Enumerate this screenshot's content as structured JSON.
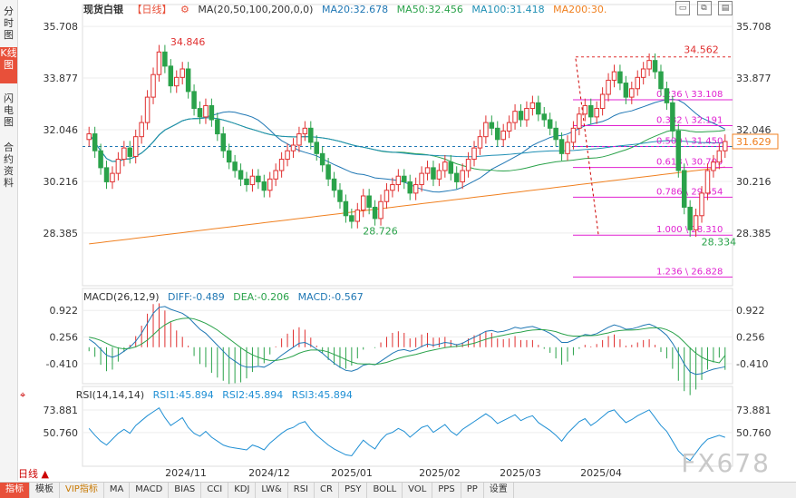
{
  "sidebar": {
    "tabs": [
      {
        "label": "分时图",
        "active": false
      },
      {
        "label": "K线图",
        "active": true
      },
      {
        "label": "闪电图",
        "active": false
      },
      {
        "label": "合约资料",
        "active": false
      }
    ]
  },
  "header": {
    "instrument": "现货白银",
    "period": "【日线】",
    "ma_params": "MA(20,50,100,200,0,0)",
    "ma20": "MA20:32.678",
    "ma50": "MA50:32.456",
    "ma100": "MA100:31.418",
    "ma200": "MA200:30."
  },
  "macd_header": {
    "params": "MACD(26,12,9)",
    "diff": "DIFF:-0.489",
    "dea": "DEA:-0.206",
    "macd": "MACD:-0.567"
  },
  "rsi_header": {
    "params": "RSI(14,14,14)",
    "rsi1": "RSI1:45.894",
    "rsi2": "RSI2:45.894",
    "rsi3": "RSI3:45.894"
  },
  "colors": {
    "up": "#e03030",
    "down": "#2aa24a",
    "ma20": "#1f77b4",
    "ma50": "#2aa24a",
    "ma100": "#1f8fb4",
    "ma200": "#f08020",
    "fib": "#e020d0",
    "macd_diff": "#1f77b4",
    "macd_dea": "#2aa24a",
    "rsi": "#1f8fd4"
  },
  "current_price": "31.629",
  "chart_data": {
    "type": "candlestick",
    "price_axis_ticks": [
      "35.708",
      "33.877",
      "32.046",
      "30.216",
      "28.385"
    ],
    "ylim": [
      27.0,
      36.0
    ],
    "x_labels": [
      "2024/11",
      "2024/12",
      "2025/01",
      "2025/02",
      "2025/03",
      "2025/04"
    ],
    "annotations": [
      {
        "label": "34.846",
        "value": 34.846
      },
      {
        "label": "28.726",
        "value": 28.726
      },
      {
        "label": "34.562",
        "value": 34.562
      },
      {
        "label": "28.334",
        "value": 28.334
      }
    ],
    "fibonacci": [
      {
        "label": "0.236 \\ 33.108",
        "value": 33.108
      },
      {
        "label": "0.382 \\ 32.191",
        "value": 32.191
      },
      {
        "label": "0.500 \\ 31.450",
        "value": 31.45
      },
      {
        "label": "0.618 \\ 30.709",
        "value": 30.709
      },
      {
        "label": "0.786 \\ 29.654",
        "value": 29.654
      },
      {
        "label": "1.000 \\ 28.310",
        "value": 28.31
      },
      {
        "label": "1.236 \\ 26.828",
        "value": 26.828
      }
    ],
    "closes": [
      31.9,
      31.3,
      30.7,
      30.2,
      30.5,
      31.0,
      31.4,
      31.1,
      31.8,
      32.3,
      33.2,
      34.0,
      34.8,
      34.3,
      33.6,
      33.9,
      34.2,
      33.4,
      32.8,
      32.5,
      32.9,
      32.4,
      31.9,
      31.3,
      30.9,
      30.6,
      30.3,
      30.1,
      30.4,
      30.2,
      29.9,
      30.3,
      30.6,
      31.0,
      31.3,
      31.5,
      31.9,
      32.1,
      31.6,
      31.2,
      30.8,
      30.3,
      29.9,
      29.5,
      29.0,
      28.8,
      29.2,
      29.7,
      29.3,
      28.9,
      29.5,
      29.9,
      30.1,
      30.4,
      30.2,
      29.8,
      30.1,
      30.5,
      30.7,
      30.3,
      30.6,
      30.9,
      30.5,
      30.2,
      30.6,
      31.0,
      31.4,
      31.8,
      32.3,
      32.1,
      31.7,
      32.0,
      32.3,
      32.7,
      32.4,
      32.8,
      33.0,
      32.6,
      32.4,
      32.1,
      31.7,
      31.2,
      31.6,
      32.1,
      32.6,
      32.9,
      32.5,
      32.8,
      33.3,
      33.8,
      34.1,
      33.7,
      33.2,
      33.5,
      33.9,
      34.2,
      34.5,
      34.1,
      33.5,
      33.0,
      32.0,
      30.6,
      29.3,
      28.5,
      29.0,
      29.8,
      30.6,
      30.9,
      31.3,
      31.629
    ],
    "macd_axis_ticks": [
      "0.922",
      "0.256",
      "-0.410"
    ],
    "macd_ylim": [
      -0.8,
      1.2
    ],
    "macd_diff": [
      0.2,
      0.1,
      -0.05,
      -0.2,
      -0.25,
      -0.2,
      -0.1,
      0.0,
      0.15,
      0.35,
      0.6,
      0.85,
      1.0,
      1.02,
      0.95,
      0.9,
      0.85,
      0.75,
      0.6,
      0.45,
      0.35,
      0.2,
      0.05,
      -0.1,
      -0.25,
      -0.35,
      -0.45,
      -0.5,
      -0.5,
      -0.48,
      -0.5,
      -0.42,
      -0.32,
      -0.2,
      -0.1,
      0.0,
      0.1,
      0.12,
      0.05,
      -0.05,
      -0.15,
      -0.28,
      -0.4,
      -0.5,
      -0.58,
      -0.6,
      -0.55,
      -0.45,
      -0.42,
      -0.44,
      -0.35,
      -0.25,
      -0.15,
      -0.08,
      -0.06,
      -0.1,
      -0.06,
      0.02,
      0.08,
      0.05,
      0.08,
      0.12,
      0.1,
      0.06,
      0.1,
      0.18,
      0.25,
      0.32,
      0.4,
      0.42,
      0.38,
      0.4,
      0.44,
      0.5,
      0.47,
      0.5,
      0.52,
      0.47,
      0.42,
      0.35,
      0.25,
      0.12,
      0.12,
      0.18,
      0.26,
      0.32,
      0.3,
      0.34,
      0.42,
      0.5,
      0.56,
      0.52,
      0.45,
      0.46,
      0.5,
      0.55,
      0.58,
      0.52,
      0.42,
      0.3,
      0.1,
      -0.15,
      -0.42,
      -0.62,
      -0.68,
      -0.66,
      -0.6,
      -0.55,
      -0.52,
      -0.489
    ],
    "macd_dea": [
      0.25,
      0.22,
      0.17,
      0.1,
      0.03,
      -0.02,
      -0.04,
      -0.03,
      0.01,
      0.08,
      0.18,
      0.31,
      0.45,
      0.56,
      0.64,
      0.69,
      0.72,
      0.73,
      0.71,
      0.66,
      0.6,
      0.52,
      0.43,
      0.32,
      0.21,
      0.1,
      -0.01,
      -0.11,
      -0.19,
      -0.25,
      -0.3,
      -0.33,
      -0.33,
      -0.31,
      -0.27,
      -0.22,
      -0.15,
      -0.1,
      -0.07,
      -0.07,
      -0.08,
      -0.12,
      -0.18,
      -0.24,
      -0.31,
      -0.37,
      -0.41,
      -0.42,
      -0.42,
      -0.43,
      -0.41,
      -0.38,
      -0.33,
      -0.28,
      -0.24,
      -0.21,
      -0.18,
      -0.14,
      -0.1,
      -0.07,
      -0.04,
      -0.01,
      0.01,
      0.02,
      0.04,
      0.07,
      0.1,
      0.15,
      0.2,
      0.24,
      0.27,
      0.3,
      0.33,
      0.36,
      0.38,
      0.41,
      0.43,
      0.44,
      0.44,
      0.42,
      0.39,
      0.34,
      0.3,
      0.28,
      0.28,
      0.29,
      0.29,
      0.3,
      0.33,
      0.36,
      0.4,
      0.42,
      0.43,
      0.43,
      0.44,
      0.46,
      0.48,
      0.49,
      0.48,
      0.44,
      0.37,
      0.27,
      0.13,
      -0.02,
      -0.15,
      -0.25,
      -0.32,
      -0.36,
      -0.39,
      -0.206
    ],
    "rsi_axis_ticks": [
      "73.881",
      "50.760"
    ],
    "rsi_ylim": [
      20,
      85
    ],
    "rsi": [
      55,
      48,
      42,
      38,
      44,
      50,
      54,
      50,
      58,
      63,
      68,
      72,
      76,
      66,
      58,
      62,
      66,
      56,
      50,
      47,
      52,
      46,
      42,
      38,
      36,
      35,
      34,
      33,
      38,
      36,
      33,
      40,
      45,
      50,
      54,
      56,
      60,
      62,
      54,
      48,
      43,
      38,
      34,
      31,
      28,
      27,
      35,
      43,
      38,
      34,
      43,
      49,
      51,
      55,
      52,
      46,
      51,
      56,
      58,
      51,
      55,
      59,
      52,
      48,
      54,
      58,
      62,
      66,
      70,
      66,
      60,
      63,
      66,
      69,
      63,
      66,
      68,
      61,
      57,
      53,
      48,
      42,
      50,
      56,
      62,
      65,
      58,
      62,
      67,
      72,
      74,
      67,
      61,
      64,
      68,
      71,
      74,
      66,
      58,
      52,
      42,
      32,
      26,
      22,
      30,
      38,
      44,
      46,
      48,
      45.894
    ]
  },
  "bottom_bar": {
    "period_label": "日线",
    "buttons": [
      "指标",
      "模板",
      "VIP指标",
      "MA",
      "MACD",
      "BIAS",
      "CCI",
      "KDJ",
      "LW&",
      "RSI",
      "CR",
      "PSY",
      "BOLL",
      "VOL",
      "PPS",
      "PP",
      "设置"
    ]
  },
  "watermark": "FX678"
}
